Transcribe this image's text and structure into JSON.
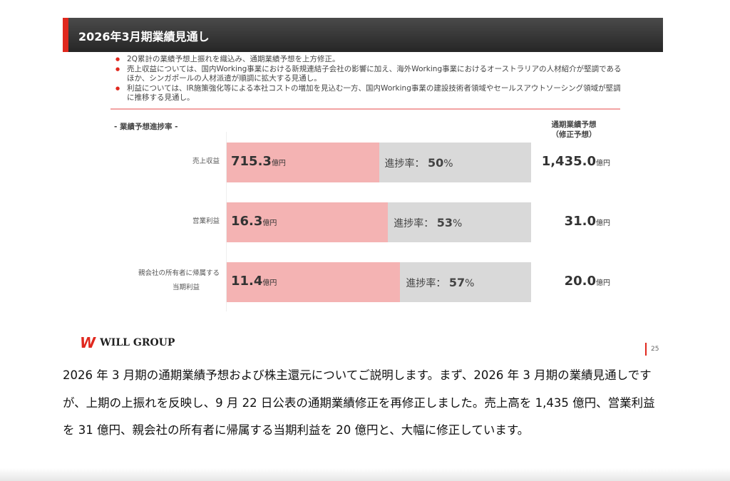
{
  "slide": {
    "title": "2026年3月期業績見通し",
    "bullets": [
      "2Q累計の業績予想上振れを織込み、通期業績予想を上方修正。",
      "売上収益については、国内Working事業における新規連結子会社の影響に加え、海外Working事業におけるオーストラリアの人材紹介が堅調であるほか、シンガポールの人材派遣が順調に拡大する見通し。",
      "利益については、IR施策強化等による本社コストの増加を見込む一方、国内Working事業の建設技術者領域やセールスアウトソーシング領域が堅調に推移する見通し。"
    ],
    "chart_title": "- 業績予想進捗率 -",
    "forecast_header_1": "通期業績予想",
    "forecast_header_2": "（修正予想）",
    "logo_text": "WILL GROUP",
    "page_number": "25"
  },
  "chart_data": {
    "type": "bar",
    "title": "業績予想進捗率",
    "unit": "億円",
    "rate_label": "進捗率：",
    "categories": [
      "売上収益",
      "営業利益",
      "親会社の所有者に帰属する当期利益"
    ],
    "rows": [
      {
        "label_1": "売上収益",
        "label_2": "",
        "actual": "715.3",
        "progress": 50,
        "progress_text": "50",
        "forecast": "1,435.0"
      },
      {
        "label_1": "営業利益",
        "label_2": "",
        "actual": "16.3",
        "progress": 53,
        "progress_text": "53",
        "forecast": "31.0"
      },
      {
        "label_1": "親会社の所有者に帰属する",
        "label_2": "当期利益",
        "actual": "11.4",
        "progress": 57,
        "progress_text": "57",
        "forecast": "20.0"
      }
    ],
    "colors": {
      "actual": "#f4b3b3",
      "remaining": "#d9d9d9"
    }
  },
  "transcript": "2026 年 3 月期の通期業績予想および株主還元についてご説明します。まず、2026 年 3 月期の業績見通しですが、上期の上振れを反映し、9 月 22 日公表の通期業績修正を再修正しました。売上高を 1,435 億円、営業利益を 31 億円、親会社の所有者に帰属する当期利益を 20 億円と、大幅に修正しています。"
}
